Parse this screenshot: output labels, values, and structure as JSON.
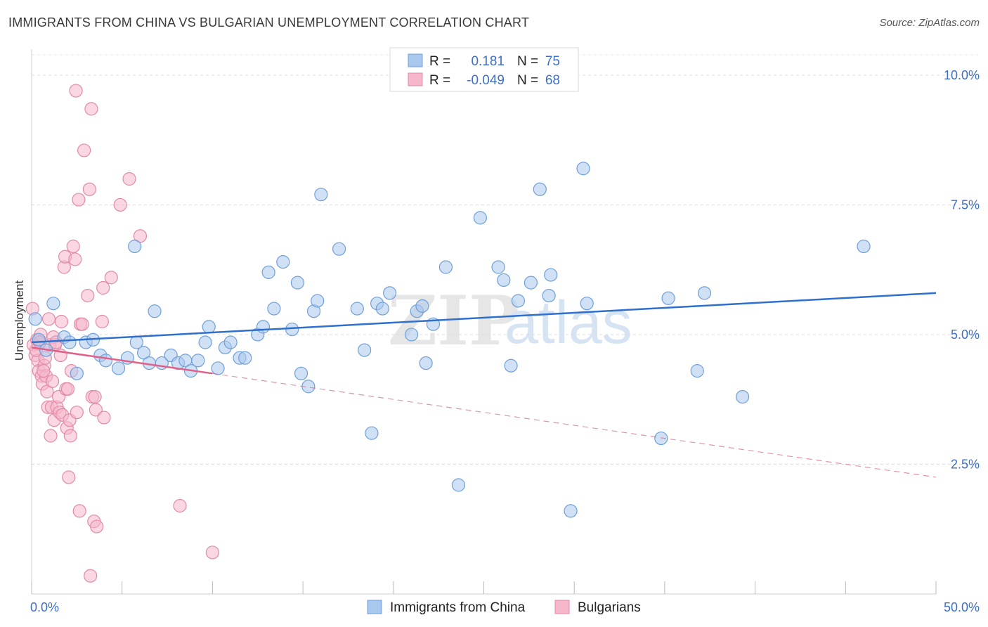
{
  "title": "IMMIGRANTS FROM CHINA VS BULGARIAN UNEMPLOYMENT CORRELATION CHART",
  "source": "Source: ZipAtlas.com",
  "watermark": {
    "zip": "ZIP",
    "atlas": "atlas"
  },
  "legend": {
    "rows": [
      {
        "r_label": "R =",
        "r_value": "0.181",
        "n_label": "N =",
        "n_value": "75",
        "color": "#a9c8ee",
        "stroke": "#6f9fd8"
      },
      {
        "r_label": "R =",
        "r_value": "-0.049",
        "n_label": "N =",
        "n_value": "68",
        "color": "#f6b7cb",
        "stroke": "#e08aa8"
      }
    ]
  },
  "bottom_legend": [
    {
      "label": "Immigrants from China",
      "color": "#a9c8ee",
      "stroke": "#6f9fd8"
    },
    {
      "label": "Bulgarians",
      "color": "#f6b7cb",
      "stroke": "#e08aa8"
    }
  ],
  "chart_data": {
    "type": "scatter",
    "title": "IMMIGRANTS FROM CHINA VS BULGARIAN UNEMPLOYMENT CORRELATION CHART",
    "xlabel": "",
    "ylabel": "Unemployment",
    "xlim": [
      0,
      50
    ],
    "ylim": [
      0,
      10.5
    ],
    "x_tick_labels": [
      "0.0%",
      "50.0%"
    ],
    "y_ticks": [
      2.5,
      5.0,
      7.5,
      10.0
    ],
    "y_tick_labels": [
      "2.5%",
      "5.0%",
      "7.5%",
      "10.0%"
    ],
    "grid": true,
    "series": [
      {
        "name": "Immigrants from China",
        "color": "#a9c8ee",
        "stroke": "#6f9fd8",
        "trend": {
          "x0": 0,
          "y0": 4.85,
          "x1": 50,
          "y1": 5.8,
          "color": "#2f6fce"
        },
        "points": [
          [
            0.2,
            5.3
          ],
          [
            0.4,
            4.9
          ],
          [
            0.8,
            4.7
          ],
          [
            1.2,
            5.6
          ],
          [
            1.8,
            4.95
          ],
          [
            2.1,
            4.85
          ],
          [
            2.5,
            4.25
          ],
          [
            3.0,
            4.85
          ],
          [
            3.4,
            4.9
          ],
          [
            3.8,
            4.6
          ],
          [
            4.1,
            4.5
          ],
          [
            4.8,
            4.35
          ],
          [
            5.3,
            4.55
          ],
          [
            5.7,
            6.7
          ],
          [
            5.8,
            4.85
          ],
          [
            6.2,
            4.65
          ],
          [
            6.5,
            4.45
          ],
          [
            6.8,
            5.45
          ],
          [
            7.2,
            4.45
          ],
          [
            7.7,
            4.6
          ],
          [
            8.1,
            4.45
          ],
          [
            8.5,
            4.5
          ],
          [
            8.8,
            4.3
          ],
          [
            9.2,
            4.5
          ],
          [
            9.6,
            4.85
          ],
          [
            9.8,
            5.15
          ],
          [
            10.3,
            4.35
          ],
          [
            10.7,
            4.75
          ],
          [
            11.0,
            4.85
          ],
          [
            11.5,
            4.55
          ],
          [
            11.8,
            4.55
          ],
          [
            12.5,
            5.0
          ],
          [
            12.8,
            5.15
          ],
          [
            13.1,
            6.2
          ],
          [
            13.4,
            5.5
          ],
          [
            13.9,
            6.4
          ],
          [
            14.4,
            5.1
          ],
          [
            14.7,
            6.0
          ],
          [
            14.9,
            4.25
          ],
          [
            15.3,
            4.0
          ],
          [
            15.6,
            5.45
          ],
          [
            15.8,
            5.65
          ],
          [
            16.0,
            7.7
          ],
          [
            17.0,
            6.65
          ],
          [
            18.0,
            5.5
          ],
          [
            18.4,
            4.7
          ],
          [
            18.8,
            3.1
          ],
          [
            19.1,
            5.6
          ],
          [
            19.4,
            5.5
          ],
          [
            19.8,
            5.8
          ],
          [
            21.0,
            5.0
          ],
          [
            21.3,
            5.45
          ],
          [
            21.6,
            5.55
          ],
          [
            21.8,
            4.45
          ],
          [
            22.2,
            5.2
          ],
          [
            22.9,
            6.3
          ],
          [
            23.6,
            2.1
          ],
          [
            24.8,
            7.25
          ],
          [
            25.8,
            6.3
          ],
          [
            26.1,
            6.05
          ],
          [
            26.5,
            4.4
          ],
          [
            26.9,
            5.65
          ],
          [
            27.6,
            6.0
          ],
          [
            28.1,
            7.8
          ],
          [
            28.6,
            5.75
          ],
          [
            28.7,
            6.15
          ],
          [
            29.8,
            1.6
          ],
          [
            30.5,
            8.2
          ],
          [
            30.7,
            5.6
          ],
          [
            34.8,
            3.0
          ],
          [
            35.2,
            5.7
          ],
          [
            36.8,
            4.3
          ],
          [
            37.2,
            5.8
          ],
          [
            39.3,
            3.8
          ],
          [
            46.0,
            6.7
          ]
        ]
      },
      {
        "name": "Bulgarians",
        "color": "#f6b7cb",
        "stroke": "#e08aa8",
        "trend": {
          "x0": 0,
          "y0": 4.75,
          "x1": 10,
          "y1": 4.25,
          "color": "#e0608a",
          "dashed_to": {
            "x": 50,
            "y": 2.25
          }
        },
        "points": [
          [
            0.05,
            5.5
          ],
          [
            0.1,
            4.8
          ],
          [
            0.2,
            4.6
          ],
          [
            0.3,
            4.9
          ],
          [
            0.35,
            4.5
          ],
          [
            0.4,
            4.3
          ],
          [
            0.5,
            5.0
          ],
          [
            0.55,
            4.2
          ],
          [
            0.6,
            4.05
          ],
          [
            0.7,
            4.4
          ],
          [
            0.8,
            4.2
          ],
          [
            0.85,
            3.9
          ],
          [
            0.9,
            3.6
          ],
          [
            0.95,
            5.3
          ],
          [
            1.0,
            4.8
          ],
          [
            1.05,
            3.05
          ],
          [
            1.1,
            3.6
          ],
          [
            1.15,
            4.1
          ],
          [
            1.2,
            4.95
          ],
          [
            1.25,
            3.35
          ],
          [
            1.3,
            4.8
          ],
          [
            1.4,
            3.6
          ],
          [
            1.5,
            3.8
          ],
          [
            1.55,
            3.5
          ],
          [
            1.6,
            4.6
          ],
          [
            1.65,
            5.25
          ],
          [
            1.7,
            3.45
          ],
          [
            1.8,
            6.3
          ],
          [
            1.85,
            6.5
          ],
          [
            1.9,
            3.95
          ],
          [
            1.95,
            3.2
          ],
          [
            2.0,
            3.95
          ],
          [
            2.05,
            2.25
          ],
          [
            2.1,
            3.35
          ],
          [
            2.15,
            3.05
          ],
          [
            2.2,
            4.3
          ],
          [
            2.3,
            6.7
          ],
          [
            2.4,
            6.45
          ],
          [
            2.45,
            9.7
          ],
          [
            2.5,
            3.5
          ],
          [
            2.6,
            7.6
          ],
          [
            2.65,
            1.6
          ],
          [
            2.7,
            5.2
          ],
          [
            2.8,
            5.2
          ],
          [
            2.9,
            8.55
          ],
          [
            3.1,
            5.75
          ],
          [
            3.2,
            7.8
          ],
          [
            3.25,
            0.35
          ],
          [
            3.3,
            9.35
          ],
          [
            3.35,
            3.8
          ],
          [
            3.45,
            1.4
          ],
          [
            3.5,
            3.8
          ],
          [
            3.55,
            3.55
          ],
          [
            3.6,
            1.3
          ],
          [
            3.9,
            5.25
          ],
          [
            3.95,
            5.9
          ],
          [
            4.0,
            3.4
          ],
          [
            4.4,
            6.1
          ],
          [
            4.9,
            7.5
          ],
          [
            5.4,
            8.0
          ],
          [
            6.0,
            6.9
          ],
          [
            8.2,
            1.7
          ],
          [
            10.0,
            0.8
          ],
          [
            0.25,
            4.7
          ],
          [
            0.45,
            4.85
          ],
          [
            0.65,
            4.3
          ],
          [
            0.75,
            4.55
          ],
          [
            1.35,
            4.85
          ]
        ]
      }
    ]
  }
}
